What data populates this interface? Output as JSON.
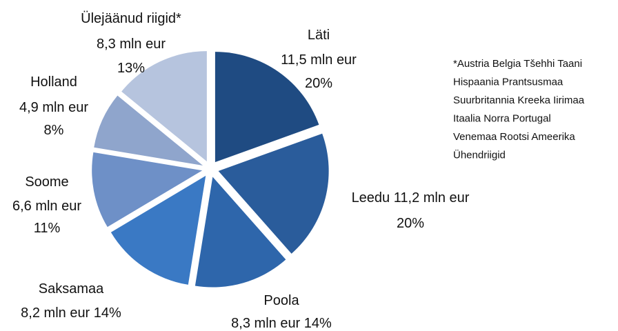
{
  "chart_data": {
    "type": "pie",
    "categories": [
      "Läti",
      "Leedu",
      "Poola",
      "Saksamaa",
      "Soome",
      "Holland",
      "Ülejäänud riigid*"
    ],
    "values": [
      11.5,
      11.2,
      8.3,
      8.2,
      6.6,
      4.9,
      8.3
    ],
    "value_labels": [
      "11,5 mln eur",
      "11,2 mln eur",
      "8,3 mln eur",
      "8,2 mln eur",
      "6,6 mln eur",
      "4,9 mln eur",
      "8,3 mln eur"
    ],
    "percents": [
      20,
      20,
      14,
      14,
      11,
      8,
      13
    ],
    "percent_labels": [
      "20%",
      "20%",
      "14%",
      "14%",
      "11%",
      "8%",
      "13%"
    ],
    "colors": [
      "#1f4b82",
      "#2a5c9b",
      "#2e66ab",
      "#3a79c4",
      "#6e90c7",
      "#8fa5cc",
      "#b6c4de"
    ],
    "note_lines": [
      "*Austria Belgia Tšehhi Taani",
      "Hispaania Prantsusmaa",
      "Suurbritannia Kreeka Iirimaa",
      "Itaalia Norra Portugal",
      "Venemaa Rootsi Ameerika",
      "Ühendriigid"
    ]
  }
}
